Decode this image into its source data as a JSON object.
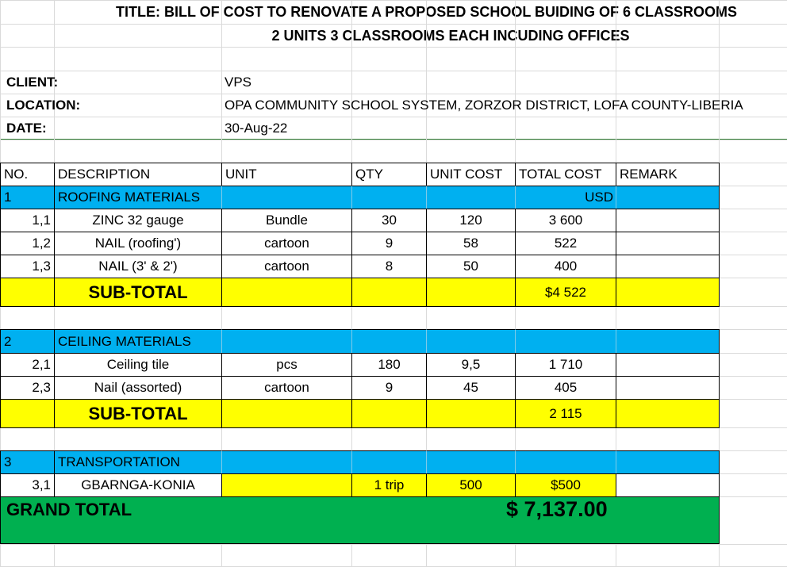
{
  "header": {
    "title_line_1": "TITLE: BILL OF COST TO RENOVATE A PROPOSED SCHOOL BUIDING OF 6 CLASSROOMS",
    "title_line_2": "2 UNITS  3 CLASSROOMS EACH INCUDING OFFICES"
  },
  "info": [
    {
      "label": "CLIENT:",
      "value": "VPS"
    },
    {
      "label": "LOCATION:",
      "value": "OPA COMMUNITY SCHOOL SYSTEM, ZORZOR DISTRICT, LOFA COUNTY-LIBERIA"
    },
    {
      "label": "DATE:",
      "value": "30-Aug-22"
    }
  ],
  "table": {
    "columns": [
      "NO.",
      "DESCRIPTION",
      "UNIT",
      "QTY",
      "UNIT COST",
      "TOTAL COST",
      "REMARK"
    ],
    "rows": [
      [
        "1",
        "ROOFING  MATERIALS",
        null,
        null,
        null,
        "USD",
        null
      ],
      [
        "1,1",
        "ZINC 32 gauge",
        "Bundle",
        "30",
        "120",
        "3 600",
        null
      ],
      [
        "1,2",
        "NAIL (roofing')",
        "cartoon",
        "9",
        "58",
        "522",
        null
      ],
      [
        "1,3",
        "NAIL (3' & 2')",
        "cartoon",
        "8",
        "50",
        "400",
        null
      ],
      [
        null,
        "SUB-TOTAL",
        null,
        null,
        null,
        "$4 522",
        null
      ],
      [
        "2",
        "CEILING MATERIALS",
        null,
        null,
        null,
        null,
        null
      ],
      [
        "2,1",
        "Ceiling tile",
        "pcs",
        "180",
        "9,5",
        "1 710",
        null
      ],
      [
        "2,3",
        "Nail (assorted)",
        "cartoon",
        "9",
        "45",
        "405",
        null
      ],
      [
        null,
        "SUB-TOTAL",
        null,
        null,
        null,
        "2 115",
        null
      ],
      [
        "3",
        "TRANSPORTATION",
        null,
        null,
        null,
        null,
        null
      ],
      [
        "3,1",
        "GBARNGA-KONIA",
        null,
        "1 trip",
        "500",
        "$500",
        null
      ]
    ],
    "grand_total": {
      "label": "GRAND TOTAL",
      "amount": "$ 7,137.00"
    }
  }
}
